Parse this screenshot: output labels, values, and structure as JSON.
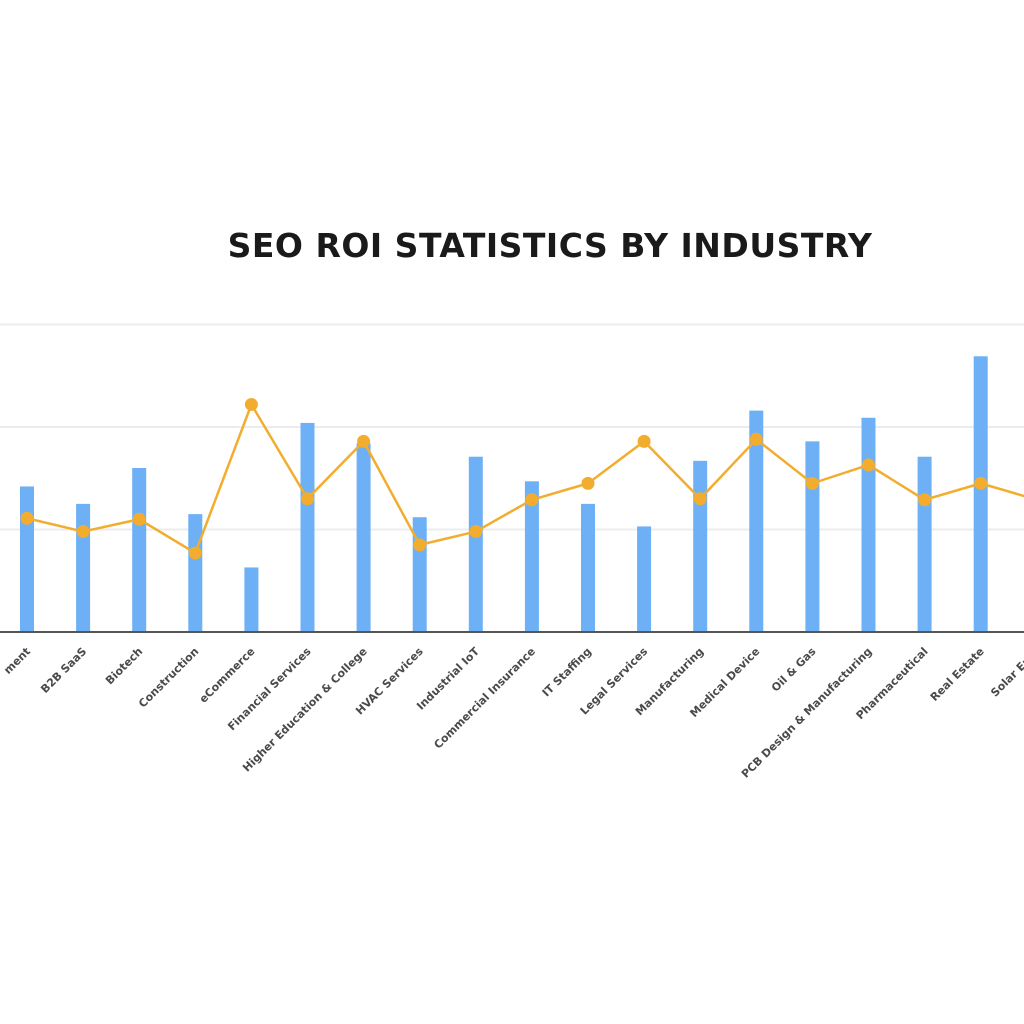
{
  "chart_data": {
    "type": "bar",
    "title": "SEO ROI STATISTICS BY INDUSTRY",
    "xlabel": "",
    "ylabel": "",
    "ylim": [
      0,
      3
    ],
    "grid": true,
    "categories": [
      "Agency & Entertainment",
      "B2B SaaS",
      "Biotech",
      "Construction",
      "eCommerce",
      "Financial Services",
      "Higher Education & College",
      "HVAC Services",
      "Industrial IoT",
      "Commercial Insurance",
      "IT Staffing",
      "Legal Services",
      "Manufacturing",
      "Medical Device",
      "Oil & Gas",
      "PCB Design & Manufacturing",
      "Pharmaceutical",
      "Real Estate",
      "Solar Energy"
    ],
    "visible_labels": [
      "ment",
      "B2B SaaS",
      "Biotech",
      "Construction",
      "eCommerce",
      "Financial Services",
      "Higher Education & College",
      "HVAC Services",
      "Industrial IoT",
      "Commercial Insurance",
      "IT Staffing",
      "Legal Services",
      "Manufacturing",
      "Medical Device",
      "Oil & Gas",
      "PCB Design & Manufacturing",
      "Pharmaceutical",
      "Real Estate",
      "Solar Ener"
    ],
    "series": [
      {
        "type": "bar",
        "color": "#6db0f5",
        "values": [
          1.42,
          1.25,
          1.6,
          1.15,
          0.63,
          2.04,
          1.84,
          1.12,
          1.71,
          1.47,
          1.25,
          1.03,
          1.67,
          2.16,
          1.86,
          2.09,
          1.71,
          2.69,
          1.53
        ]
      },
      {
        "type": "line",
        "color": "#f2ad2f",
        "values": [
          1.11,
          0.98,
          1.1,
          0.77,
          2.22,
          1.3,
          1.86,
          0.85,
          0.98,
          1.29,
          1.45,
          1.86,
          1.3,
          1.88,
          1.45,
          1.63,
          1.29,
          1.45,
          1.29
        ]
      }
    ]
  }
}
